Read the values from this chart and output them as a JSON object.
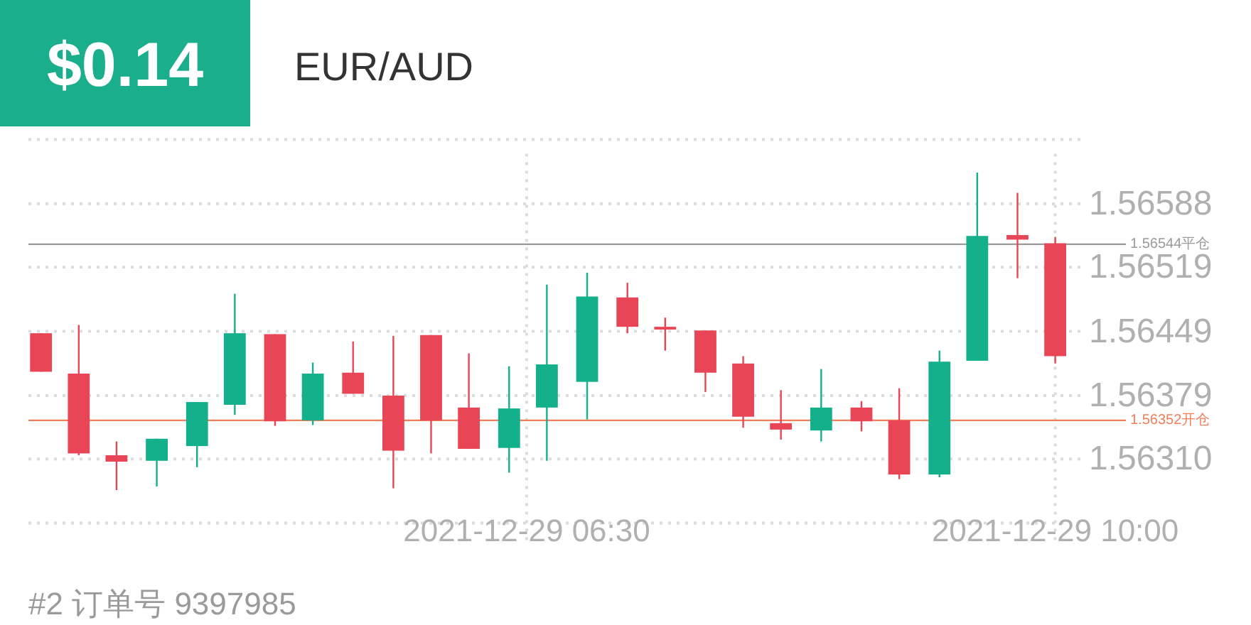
{
  "chart_data": {
    "type": "candlestick",
    "title": "EUR/AUD",
    "annotations": [
      "$0.14",
      "#2 订单号 9397985"
    ],
    "x": [
      "2021-12-29T03:17",
      "2021-12-29T03:32",
      "2021-12-29T03:47",
      "2021-12-29T04:03",
      "2021-12-29T04:19",
      "2021-12-29T04:34",
      "2021-12-29T04:50",
      "2021-12-29T05:05",
      "2021-12-29T05:21",
      "2021-12-29T05:37",
      "2021-12-29T05:52",
      "2021-12-29T06:07",
      "2021-12-29T06:23",
      "2021-12-29T06:38",
      "2021-12-29T06:54",
      "2021-12-29T07:10",
      "2021-12-29T07:25",
      "2021-12-29T07:41",
      "2021-12-29T07:56",
      "2021-12-29T08:11",
      "2021-12-29T08:27",
      "2021-12-29T08:43",
      "2021-12-29T08:58",
      "2021-12-29T09:14",
      "2021-12-29T09:29",
      "2021-12-29T09:45",
      "2021-12-29T10:00"
    ],
    "ohlc": [
      [
        1.56447,
        1.56447,
        1.56405,
        1.56405
      ],
      [
        1.56403,
        1.56456,
        1.56314,
        1.56316
      ],
      [
        1.56314,
        1.56329,
        1.56276,
        1.56307
      ],
      [
        1.56308,
        1.56332,
        1.5628,
        1.56332
      ],
      [
        1.56324,
        1.56372,
        1.56301,
        1.56372
      ],
      [
        1.56369,
        1.5649,
        1.56358,
        1.56447
      ],
      [
        1.56446,
        1.56446,
        1.56346,
        1.56351
      ],
      [
        1.56352,
        1.56415,
        1.56347,
        1.56403
      ],
      [
        1.56404,
        1.56438,
        1.56381,
        1.56381
      ],
      [
        1.56379,
        1.56444,
        1.56278,
        1.56319
      ],
      [
        1.56445,
        1.56445,
        1.56316,
        1.56352
      ],
      [
        1.56366,
        1.56425,
        1.56321,
        1.56321
      ],
      [
        1.56322,
        1.56411,
        1.56295,
        1.56365
      ],
      [
        1.56366,
        1.565,
        1.56308,
        1.56413
      ],
      [
        1.56394,
        1.56513,
        1.56353,
        1.56487
      ],
      [
        1.56486,
        1.56502,
        1.56447,
        1.56454
      ],
      [
        1.56454,
        1.56464,
        1.56428,
        1.56451
      ],
      [
        1.5645,
        1.5645,
        1.56383,
        1.56404
      ],
      [
        1.56414,
        1.56422,
        1.56344,
        1.56356
      ],
      [
        1.56349,
        1.56385,
        1.56331,
        1.56342
      ],
      [
        1.56341,
        1.56408,
        1.56329,
        1.56366
      ],
      [
        1.56366,
        1.56373,
        1.5634,
        1.56351
      ],
      [
        1.56352,
        1.56387,
        1.56288,
        1.56293
      ],
      [
        1.56293,
        1.56428,
        1.5629,
        1.56416
      ],
      [
        1.56417,
        1.56622,
        1.56417,
        1.56553
      ],
      [
        1.56554,
        1.566,
        1.56507,
        1.56549
      ],
      [
        1.56545,
        1.56552,
        1.56414,
        1.56422
      ]
    ],
    "colors": [
      "#e84656",
      "#e84656",
      "#e84656",
      "#14b08c",
      "#14b08c",
      "#14b08c",
      "#e84656",
      "#14b08c",
      "#e84656",
      "#e84656",
      "#e84656",
      "#e84656",
      "#14b08c",
      "#14b08c",
      "#14b08c",
      "#e84656",
      "#e84656",
      "#e84656",
      "#e84656",
      "#e84656",
      "#14b08c",
      "#e84656",
      "#e84656",
      "#14b08c",
      "#14b08c",
      "#e84656",
      "#e84656"
    ],
    "xlim": [
      "2021-12-29T03:12",
      "2021-12-29T10:10"
    ],
    "xticks": [
      {
        "value": "2021-12-29T06:30",
        "label": "2021-12-29 06:30"
      },
      {
        "value": "2021-12-29T10:00",
        "label": "2021-12-29 10:00"
      }
    ],
    "ylim": [
      1.5624,
      1.56658
    ],
    "yticks": [
      {
        "value": 1.5624,
        "label": null
      },
      {
        "value": 1.5631,
        "label": "1.56310"
      },
      1.56379,
      1.56449,
      1.56519,
      1.56588,
      {
        "value": 1.56658,
        "label": null
      }
    ],
    "ref_lines": [
      {
        "axis": "y",
        "value": 1.56544,
        "label": "1.56544平仓",
        "color": "#9a9a9a"
      },
      {
        "axis": "y",
        "value": 1.56352,
        "label": "1.56352开仓",
        "color": "#f07f5a"
      }
    ],
    "grid": true
  }
}
